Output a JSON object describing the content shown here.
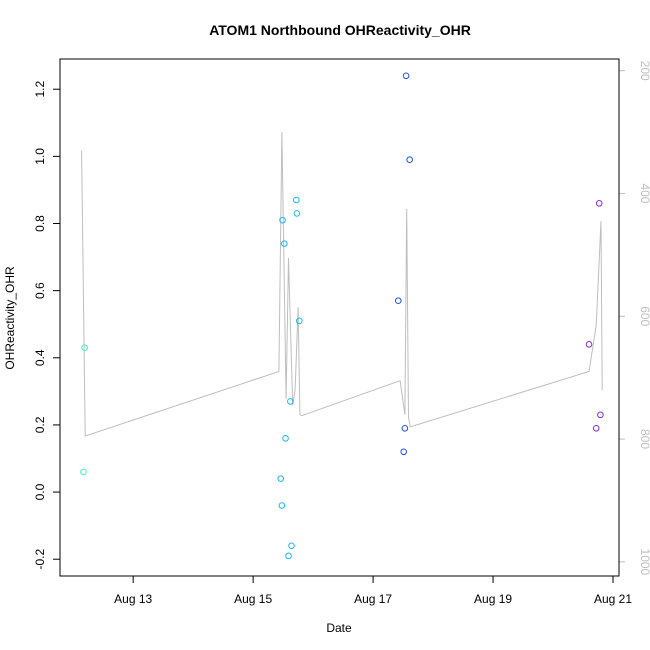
{
  "chart_data": {
    "type": "scatter",
    "title": "ATOM1 Northbound OHReactivity_OHR",
    "xlabel": "Date",
    "ylabel": "OHReactivity_OHR",
    "x_unit": "days in August",
    "xlim": [
      11.78,
      21.1
    ],
    "ylim": [
      -0.25,
      1.29
    ],
    "x_ticks": [
      {
        "value": 13,
        "label": "Aug 13"
      },
      {
        "value": 15,
        "label": "Aug 15"
      },
      {
        "value": 17,
        "label": "Aug 17"
      },
      {
        "value": 19,
        "label": "Aug 19"
      },
      {
        "value": 21,
        "label": "Aug 21"
      }
    ],
    "y_ticks": [
      {
        "value": -0.2,
        "label": "-0.2"
      },
      {
        "value": 0.0,
        "label": "0.0"
      },
      {
        "value": 0.2,
        "label": "0.2"
      },
      {
        "value": 0.4,
        "label": "0.4"
      },
      {
        "value": 0.6,
        "label": "0.6"
      },
      {
        "value": 0.8,
        "label": "0.8"
      },
      {
        "value": 1.0,
        "label": "1.0"
      },
      {
        "value": 1.2,
        "label": "1.2"
      }
    ],
    "y2_reversed": true,
    "y2lim": [
      1023,
      181
    ],
    "y2_ticks": [
      {
        "value": 200,
        "label": "200"
      },
      {
        "value": 400,
        "label": "400"
      },
      {
        "value": 600,
        "label": "600"
      },
      {
        "value": 800,
        "label": "800"
      },
      {
        "value": 1000,
        "label": "1000"
      }
    ],
    "grid": false,
    "series": [
      {
        "color": "#40f2c0",
        "points": [
          {
            "x": 12.17,
            "y": 0.06
          },
          {
            "x": 12.19,
            "y": 0.43
          }
        ]
      },
      {
        "color": "#1ab8f5",
        "points": [
          {
            "x": 15.46,
            "y": 0.04
          },
          {
            "x": 15.48,
            "y": -0.04
          },
          {
            "x": 15.49,
            "y": 0.81
          },
          {
            "x": 15.52,
            "y": 0.74
          },
          {
            "x": 15.54,
            "y": 0.16
          },
          {
            "x": 15.59,
            "y": -0.19
          },
          {
            "x": 15.62,
            "y": 0.27
          },
          {
            "x": 15.64,
            "y": -0.16
          },
          {
            "x": 15.72,
            "y": 0.87
          },
          {
            "x": 15.73,
            "y": 0.83
          },
          {
            "x": 15.77,
            "y": 0.51
          }
        ]
      },
      {
        "color": "#1a52e8",
        "points": [
          {
            "x": 17.42,
            "y": 0.57
          },
          {
            "x": 17.51,
            "y": 0.12
          },
          {
            "x": 17.53,
            "y": 0.19
          },
          {
            "x": 17.55,
            "y": 1.24
          },
          {
            "x": 17.61,
            "y": 0.99
          }
        ]
      },
      {
        "color": "#8a2be2",
        "points": [
          {
            "x": 20.6,
            "y": 0.44
          },
          {
            "x": 20.72,
            "y": 0.19
          },
          {
            "x": 20.77,
            "y": 0.86
          },
          {
            "x": 20.79,
            "y": 0.23
          }
        ]
      }
    ],
    "pressure_line": {
      "color": "#bebebe",
      "axis": "right",
      "points": [
        {
          "x": 12.14,
          "y": 330
        },
        {
          "x": 12.2,
          "y": 795
        },
        {
          "x": 15.43,
          "y": 690
        },
        {
          "x": 15.48,
          "y": 300
        },
        {
          "x": 15.55,
          "y": 735
        },
        {
          "x": 15.59,
          "y": 505
        },
        {
          "x": 15.66,
          "y": 745
        },
        {
          "x": 15.7,
          "y": 720
        },
        {
          "x": 15.75,
          "y": 585
        },
        {
          "x": 15.78,
          "y": 760
        },
        {
          "x": 15.81,
          "y": 762
        },
        {
          "x": 17.45,
          "y": 705
        },
        {
          "x": 17.53,
          "y": 760
        },
        {
          "x": 17.56,
          "y": 425
        },
        {
          "x": 17.59,
          "y": 765
        },
        {
          "x": 17.62,
          "y": 780
        },
        {
          "x": 20.6,
          "y": 690
        },
        {
          "x": 20.72,
          "y": 615
        },
        {
          "x": 20.8,
          "y": 445
        },
        {
          "x": 20.82,
          "y": 720
        }
      ]
    }
  }
}
